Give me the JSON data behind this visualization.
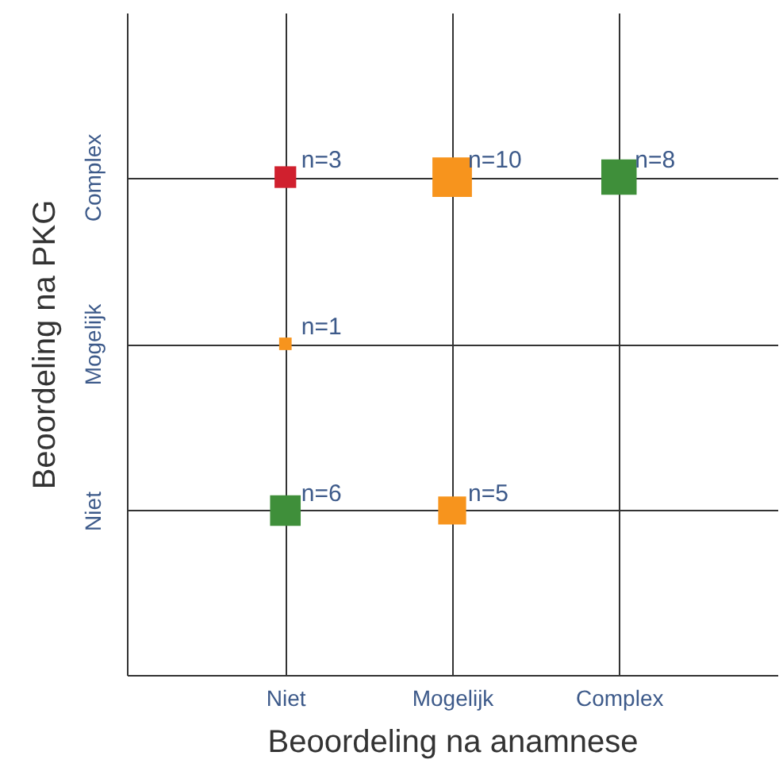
{
  "chart_data": {
    "type": "heatmap",
    "xlabel": "Beoordeling na anamnese",
    "ylabel": "Beoordeling na PKG",
    "categories": [
      "Niet",
      "Mogelijk",
      "Complex"
    ],
    "y_categories": [
      "Complex",
      "Mogelijk",
      "Niet"
    ],
    "cells": [
      [
        3,
        10,
        8
      ],
      [
        1,
        null,
        null
      ],
      [
        6,
        5,
        null
      ]
    ],
    "cell_labels": [
      [
        "n=3",
        "n=10",
        "n=8"
      ],
      [
        "n=1",
        null,
        null
      ],
      [
        "n=6",
        "n=5",
        null
      ]
    ],
    "colors": [
      [
        "#d0202e",
        "#f7941d",
        "#3f8f3a"
      ],
      [
        "#f7941d",
        null,
        null
      ],
      [
        "#3f8f3a",
        "#f7941d",
        null
      ]
    ],
    "grid": true,
    "marker": "square"
  }
}
